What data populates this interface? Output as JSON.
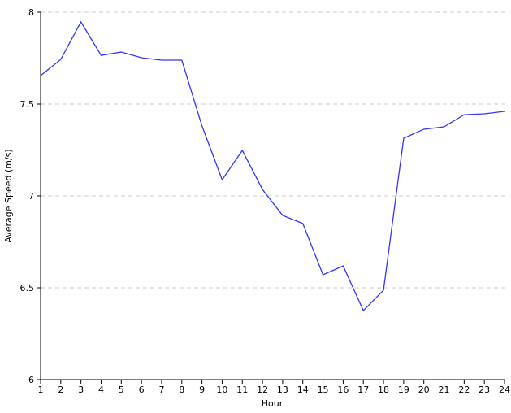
{
  "chart_data": {
    "type": "line",
    "x_label": "Hour",
    "y_label": "Average Speed (m/s)",
    "x": [
      1,
      2,
      3,
      4,
      5,
      6,
      7,
      8,
      9,
      10,
      11,
      12,
      13,
      14,
      15,
      16,
      17,
      18,
      19,
      20,
      21,
      22,
      23,
      24
    ],
    "series": [
      {
        "color": "#3333ff",
        "values": [
          7.655,
          7.743,
          7.947,
          7.765,
          7.783,
          7.752,
          7.739,
          7.739,
          7.381,
          7.088,
          7.248,
          7.035,
          6.894,
          6.85,
          6.571,
          6.619,
          6.376,
          6.487,
          7.314,
          7.363,
          7.376,
          7.442,
          7.447,
          7.46
        ]
      }
    ],
    "xlim": [
      1,
      24
    ],
    "xticks": [
      1,
      2,
      3,
      4,
      5,
      6,
      7,
      8,
      9,
      10,
      11,
      12,
      13,
      14,
      15,
      16,
      17,
      18,
      19,
      20,
      21,
      22,
      23,
      24
    ],
    "ylim": [
      6,
      8
    ],
    "yticks": [
      6,
      6.5,
      7,
      7.5,
      8
    ],
    "grid": true
  }
}
